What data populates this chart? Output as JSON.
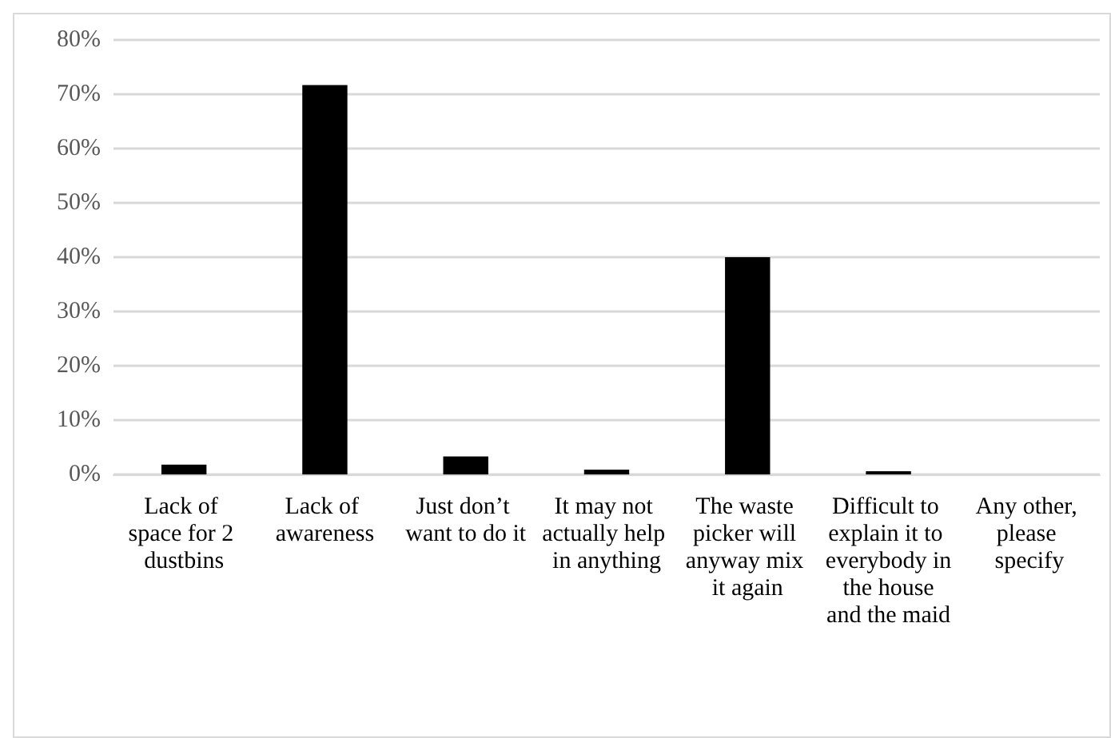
{
  "chart_data": {
    "type": "bar",
    "categories": [
      "Lack of space for 2 dustbins",
      "Lack of awareness",
      "Just don’t want to do it",
      "It may not actually help in anything",
      "The waste picker will anyway mix it again",
      "Difficult to explain it to everybody in the house and the maid",
      "Any other, please specify"
    ],
    "values": [
      1.8,
      71.7,
      3.3,
      0.9,
      40,
      0.6,
      0
    ],
    "color": "#000000",
    "ylim": [
      0,
      80
    ],
    "yticks": [
      {
        "value": 0,
        "label": "0%"
      },
      {
        "value": 10,
        "label": "10%"
      },
      {
        "value": 20,
        "label": "20%"
      },
      {
        "value": 30,
        "label": "30%"
      },
      {
        "value": 40,
        "label": "40%"
      },
      {
        "value": 50,
        "label": "50%"
      },
      {
        "value": 60,
        "label": "60%"
      },
      {
        "value": 70,
        "label": "70%"
      },
      {
        "value": 80,
        "label": "80%"
      }
    ],
    "grid": "y"
  }
}
